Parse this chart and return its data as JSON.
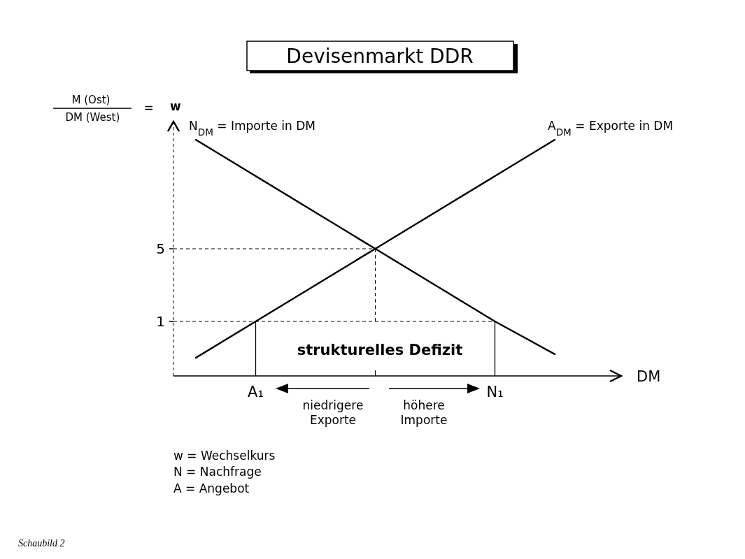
{
  "chart_data": {
    "type": "line",
    "title": "Devisenmarkt DDR",
    "xlabel": "DM",
    "ylabel": "M (Ost)\nDM (West)\n= w",
    "categories": [
      null,
      "A₁",
      null,
      null,
      null,
      "N₁",
      null
    ],
    "ylim": [
      -2,
      12
    ],
    "yticks": [
      1,
      5
    ],
    "series": [
      {
        "name": "N$_{DM}$ = Importe in DM",
        "color": "#000000",
        "values": [
          11,
          9,
          7,
          5,
          3,
          1,
          -0.8
        ]
      },
      {
        "name": "A$_{DM}$ = Exporte in DM",
        "color": "#000000",
        "values": [
          -1,
          1,
          3,
          5,
          7,
          9,
          11
        ]
      }
    ],
    "ref_lines": [
      {
        "axis": "y",
        "value": 5,
        "line_style": "dashed"
      },
      {
        "axis": "y",
        "value": 1,
        "line_style": "dashed"
      },
      {
        "axis": "x",
        "value": "A₁",
        "line_style": "solid"
      },
      {
        "axis": "x",
        "value": "N₁",
        "line_style": "solid"
      }
    ],
    "annotations": [
      "strukturelles Defizit",
      "niedrigere\nExporte",
      "höhere\nImporte",
      "w = Wechselkurs",
      "N = Nachfrage",
      "A = Angebot",
      "Schaubild 2"
    ],
    "grid": false,
    "marker": "none",
    "line_style": "solid"
  }
}
